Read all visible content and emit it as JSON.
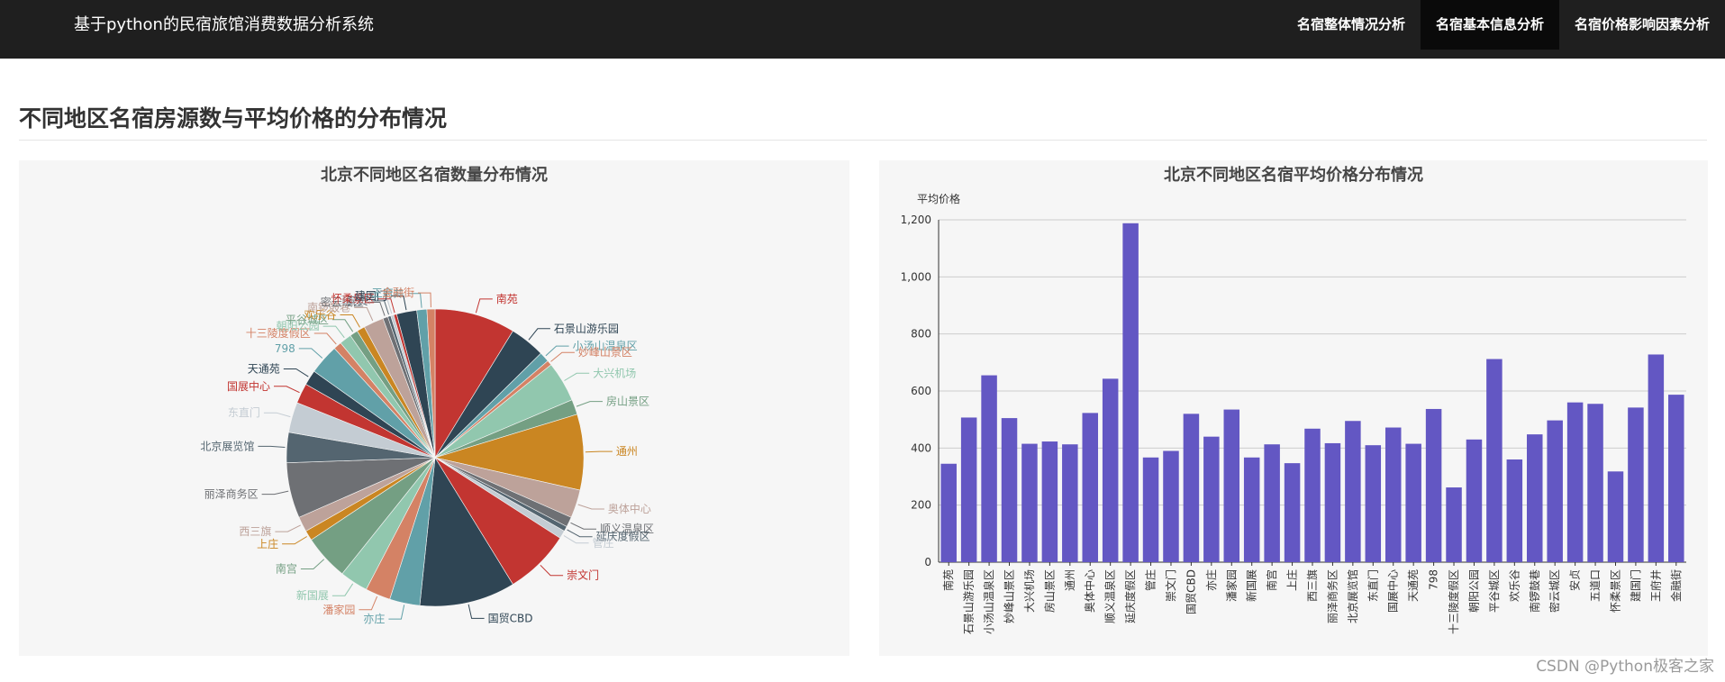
{
  "header": {
    "title": "基于python的民宿旅馆消费数据分析系统",
    "nav": [
      {
        "label": "名宿整体情况分析",
        "active": false
      },
      {
        "label": "名宿基本信息分析",
        "active": true
      },
      {
        "label": "名宿价格影响因素分析",
        "active": false
      }
    ]
  },
  "section": {
    "title": "不同地区名宿房源数与平均价格的分布情况"
  },
  "watermark": "CSDN @Python极客之家",
  "colors": [
    "#c23531",
    "#2f4554",
    "#61a0a8",
    "#d48265",
    "#91c7ae",
    "#749f83",
    "#ca8622",
    "#bda29a",
    "#6e7074",
    "#546570",
    "#c4ccd3"
  ],
  "chart_data": [
    {
      "type": "pie",
      "title": "北京不同地区名宿数量分布情况",
      "categories": [
        "南苑",
        "石景山游乐园",
        "小汤山温泉区",
        "妙峰山景区",
        "大兴机场",
        "房山景区",
        "通州",
        "奥体中心",
        "顺义温泉区",
        "延庆度假区",
        "管庄",
        "崇文门",
        "国贸CBD",
        "亦庄",
        "潘家园",
        "新国展",
        "南宫",
        "上庄",
        "西三旗",
        "丽泽商务区",
        "北京展览馆",
        "东直门",
        "国展中心",
        "天通苑",
        "798",
        "十三陵度假区",
        "朝阳公园",
        "平谷城区",
        "欢乐谷",
        "南锣鼓巷",
        "密云城区",
        "安贞",
        "五道口",
        "怀柔景区",
        "建国门",
        "王府井",
        "金融街"
      ],
      "values": [
        80,
        35,
        10,
        5,
        40,
        15,
        75,
        28,
        10,
        5,
        8,
        65,
        95,
        30,
        25,
        28,
        45,
        10,
        15,
        55,
        30,
        30,
        20,
        15,
        30,
        8,
        12,
        8,
        8,
        20,
        5,
        3,
        3,
        3,
        20,
        10,
        8
      ]
    },
    {
      "type": "bar",
      "title": "北京不同地区名宿平均价格分布情况",
      "ylabel": "平均价格",
      "ylim": [
        0,
        1200
      ],
      "yticks": [
        "0",
        "200",
        "400",
        "600",
        "800",
        "1,000",
        "1,200"
      ],
      "bar_color": "#6357c3",
      "categories": [
        "南苑",
        "石景山游乐园",
        "小汤山温泉区",
        "妙峰山景区",
        "大兴机场",
        "房山景区",
        "通州",
        "奥体中心",
        "顺义温泉区",
        "延庆度假区",
        "管庄",
        "崇文门",
        "国贸CBD",
        "亦庄",
        "潘家园",
        "新国展",
        "南宫",
        "上庄",
        "西三旗",
        "丽泽商务区",
        "北京展览馆",
        "东直门",
        "国展中心",
        "天通苑",
        "798",
        "十三陵度假区",
        "朝阳公园",
        "平谷城区",
        "欢乐谷",
        "南锣鼓巷",
        "密云城区",
        "安贞",
        "五道口",
        "怀柔景区",
        "建国门",
        "王府井",
        "金融街"
      ],
      "values": [
        345,
        507,
        655,
        505,
        415,
        423,
        413,
        523,
        643,
        1188,
        367,
        390,
        520,
        440,
        535,
        367,
        413,
        347,
        468,
        417,
        495,
        410,
        472,
        415,
        537,
        262,
        430,
        712,
        360,
        448,
        497,
        560,
        555,
        318,
        542,
        728,
        587
      ]
    }
  ]
}
